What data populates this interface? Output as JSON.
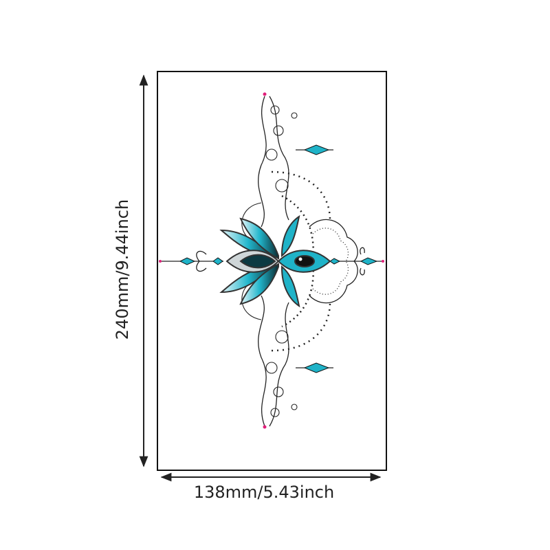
{
  "dimensions": {
    "width_label": "138mm/5.43inch",
    "height_label": "240mm/9.44inch"
  },
  "colors": {
    "accent_teal": "#1fb3c8",
    "line": "#222222",
    "dot_pink": "#e0207a"
  },
  "artwork": {
    "subject": "lotus-mandala-tattoo"
  }
}
